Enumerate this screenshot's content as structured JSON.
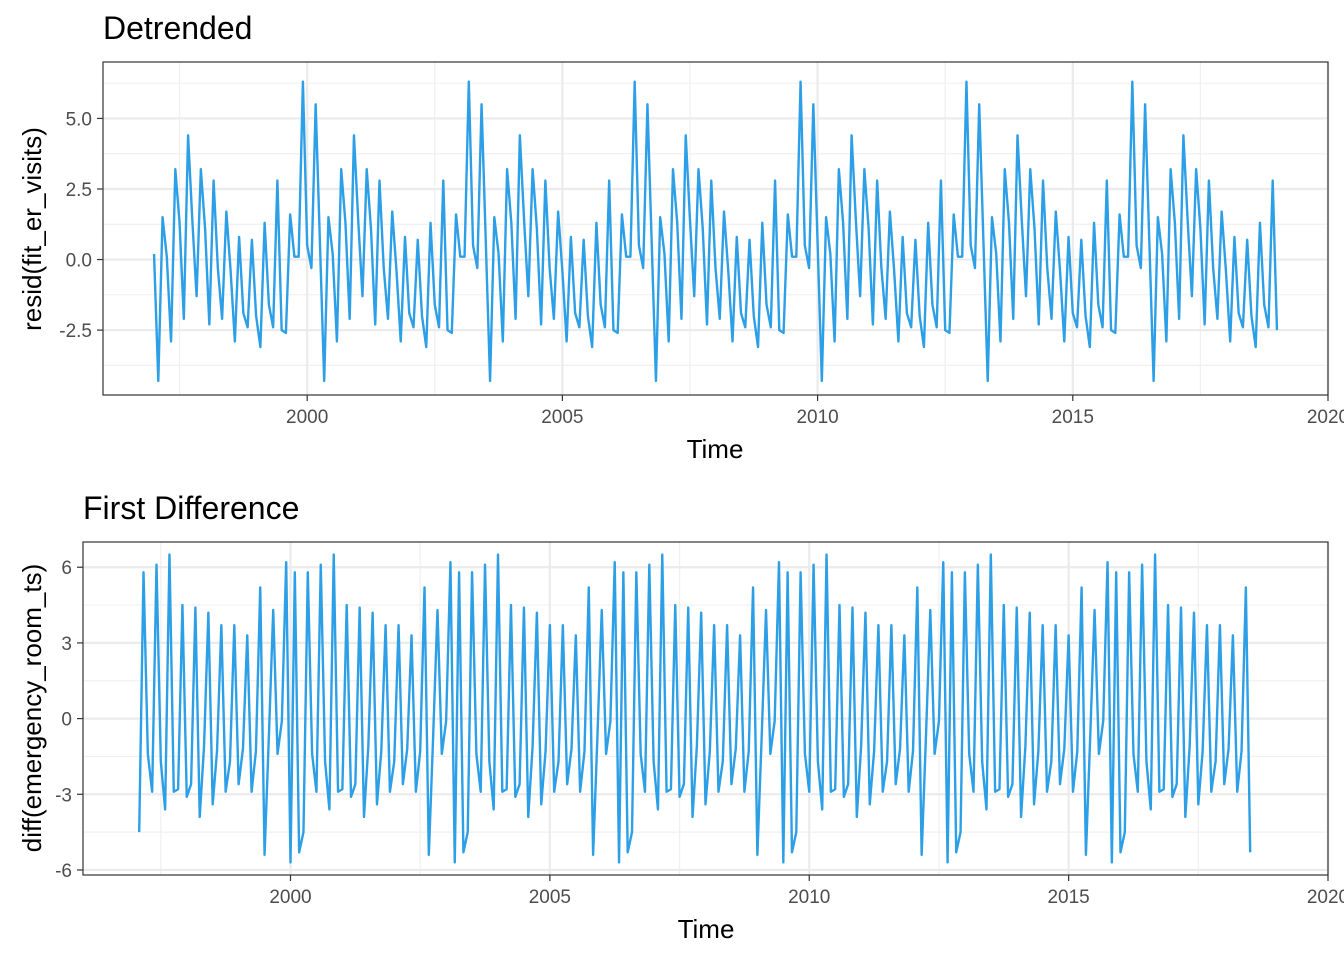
{
  "chart_data": [
    {
      "type": "line",
      "title": "Detrended",
      "xlabel": "Time",
      "ylabel": "resid(fit_er_visits)",
      "xlim": [
        1996.0,
        2020.0
      ],
      "ylim": [
        -4.8,
        7.0
      ],
      "x_ticks": [
        2000,
        2005,
        2010,
        2015,
        2020
      ],
      "x_tick_labels": [
        "2000",
        "2005",
        "2010",
        "2015",
        "2020"
      ],
      "y_ticks": [
        -2.5,
        0.0,
        2.5,
        5.0
      ],
      "y_tick_labels": [
        "-2.5",
        "0.0",
        "2.5",
        "5.0"
      ],
      "grid": true,
      "color": "#2c9fe6",
      "series": [
        {
          "x_start": 1997.0,
          "x_step": 0.0833333,
          "values": [
            0.2,
            -4.3,
            1.5,
            0.1,
            -2.9,
            3.2,
            1.3,
            -2.1,
            4.4,
            1.4,
            -1.3,
            3.2,
            1.1,
            -2.3,
            2.8,
            -0.3,
            -2.1,
            1.7,
            -0.4,
            -2.9,
            0.8,
            -1.9,
            -2.4,
            0.7,
            -2.0,
            -3.1,
            1.3,
            -1.6,
            -2.4,
            2.8,
            -2.5,
            -2.6,
            1.6,
            0.1,
            0.1,
            6.3,
            0.5,
            -0.3,
            5.5,
            0.6,
            -4.3,
            1.5,
            0.2,
            -2.9,
            3.2,
            1.3,
            -2.1,
            4.4,
            1.4,
            -1.3,
            3.2,
            1.1,
            -2.3,
            2.8,
            -0.3,
            -2.1,
            1.7,
            -0.4,
            -2.9,
            0.8,
            -1.9,
            -2.4,
            0.7,
            -2.0,
            -3.1,
            1.3,
            -1.6,
            -2.4,
            2.8,
            -2.5,
            -2.6,
            1.6,
            0.1,
            0.1,
            6.3,
            0.5,
            -0.3,
            5.5,
            0.6,
            -4.3,
            1.5,
            0.2,
            -2.9,
            3.2,
            1.3,
            -2.1,
            4.4,
            1.4,
            -1.3,
            3.2,
            1.1,
            -2.3,
            2.8,
            -0.3,
            -2.1,
            1.7,
            -0.4,
            -2.9,
            0.8,
            -1.9,
            -2.4,
            0.7,
            -2.0,
            -3.1,
            1.3,
            -1.6,
            -2.4,
            2.8,
            -2.5,
            -2.6,
            1.6,
            0.1,
            0.1,
            6.3,
            0.5,
            -0.3,
            5.5,
            0.6,
            -4.3,
            1.5,
            0.2,
            -2.9,
            3.2,
            1.3,
            -2.1,
            4.4,
            1.4,
            -1.3,
            3.2,
            1.1,
            -2.3,
            2.8,
            -0.3,
            -2.1,
            1.7,
            -0.4,
            -2.9,
            0.8,
            -1.9,
            -2.4,
            0.7,
            -2.0,
            -3.1,
            1.3,
            -1.6,
            -2.4,
            2.8,
            -2.5,
            -2.6,
            1.6,
            0.1,
            0.1,
            6.3,
            0.5,
            -0.3,
            5.5,
            0.6,
            -4.3,
            1.5,
            0.2,
            -2.9,
            3.2,
            1.3,
            -2.1,
            4.4,
            1.4,
            -1.3,
            3.2,
            1.1,
            -2.3,
            2.8,
            -0.3,
            -2.1,
            1.7,
            -0.4,
            -2.9,
            0.8,
            -1.9,
            -2.4,
            0.7,
            -2.0,
            -3.1,
            1.3,
            -1.6,
            -2.4,
            2.8,
            -2.5,
            -2.6,
            1.6,
            0.1,
            0.1,
            6.3,
            0.5,
            -0.3,
            5.5,
            0.6,
            -4.3,
            1.5,
            0.2,
            -2.9,
            3.2,
            1.3,
            -2.1,
            4.4,
            1.4,
            -1.3,
            3.2,
            1.1,
            -2.3,
            2.8,
            -0.3,
            -2.1,
            1.7,
            -0.4,
            -2.9,
            0.8,
            -1.9,
            -2.4,
            0.7,
            -2.0,
            -3.1,
            1.3,
            -1.6,
            -2.4,
            2.8,
            -2.5,
            -2.6,
            1.6,
            0.1,
            0.1,
            6.3,
            0.5,
            -0.3,
            5.5,
            0.6,
            -4.3,
            1.5,
            0.2,
            -2.9,
            3.2,
            1.3,
            -2.1,
            4.4,
            1.4,
            -1.3,
            3.2,
            1.1,
            -2.3,
            2.8,
            -0.3,
            -2.1,
            1.7,
            -0.4,
            -2.9,
            0.8,
            -1.9,
            -2.4,
            0.7,
            -2.0,
            -3.1,
            1.3,
            -1.6,
            -2.4,
            2.8,
            -2.5
          ]
        }
      ]
    },
    {
      "type": "line",
      "title": "First Difference",
      "xlabel": "Time",
      "ylabel": "diff(emergency_room_ts)",
      "xlim": [
        1996.0,
        2020.0
      ],
      "ylim": [
        -6.2,
        7.0
      ],
      "x_ticks": [
        2000,
        2005,
        2010,
        2015,
        2020
      ],
      "x_tick_labels": [
        "2000",
        "2005",
        "2010",
        "2015",
        "2020"
      ],
      "y_ticks": [
        -6,
        -3,
        0,
        3,
        6
      ],
      "y_tick_labels": [
        "-6",
        "-3",
        "0",
        "3",
        "6"
      ],
      "grid": true,
      "color": "#2c9fe6",
      "series": [
        {
          "x_start": 1997.0833,
          "x_step": 0.0833333,
          "values": [
            -4.5,
            5.8,
            -1.4,
            -2.9,
            6.1,
            -1.7,
            -3.6,
            6.5,
            -2.9,
            -2.8,
            4.5,
            -3.1,
            -2.6,
            4.4,
            -3.9,
            -1.1,
            4.2,
            -3.4,
            -1.3,
            3.7,
            -2.9,
            -1.7,
            3.7,
            -2.6,
            -1.2,
            3.3,
            -2.9,
            -1.3,
            5.2,
            -5.4,
            -0.7,
            4.3,
            -1.4,
            -0.1,
            6.2,
            -5.7,
            5.8,
            -5.3,
            -4.5,
            5.8,
            -1.4,
            -2.9,
            6.1,
            -1.7,
            -3.6,
            6.5,
            -2.9,
            -2.8,
            4.5,
            -3.1,
            -2.6,
            4.4,
            -3.9,
            -1.1,
            4.2,
            -3.4,
            -1.3,
            3.7,
            -2.9,
            -1.7,
            3.7,
            -2.6,
            -1.2,
            3.3,
            -2.9,
            -1.3,
            5.2,
            -5.4,
            -0.7,
            4.3,
            -1.4,
            -0.1,
            6.2,
            -5.7,
            5.8,
            -5.3,
            -4.5,
            5.8,
            -1.4,
            -2.9,
            6.1,
            -1.7,
            -3.6,
            6.5,
            -2.9,
            -2.8,
            4.5,
            -3.1,
            -2.6,
            4.4,
            -3.9,
            -1.1,
            4.2,
            -3.4,
            -1.3,
            3.7,
            -2.9,
            -1.7,
            3.7,
            -2.6,
            -1.2,
            3.3,
            -2.9,
            -1.3,
            5.2,
            -5.4,
            -0.7,
            4.3,
            -1.4,
            -0.1,
            6.2,
            -5.7,
            5.8,
            -5.3,
            -4.5,
            5.8,
            -1.4,
            -2.9,
            6.1,
            -1.7,
            -3.6,
            6.5,
            -2.9,
            -2.8,
            4.5,
            -3.1,
            -2.6,
            4.4,
            -3.9,
            -1.1,
            4.2,
            -3.4,
            -1.3,
            3.7,
            -2.9,
            -1.7,
            3.7,
            -2.6,
            -1.2,
            3.3,
            -2.9,
            -1.3,
            5.2,
            -5.4,
            -0.7,
            4.3,
            -1.4,
            -0.1,
            6.2,
            -5.7,
            5.8,
            -5.3,
            -4.5,
            5.8,
            -1.4,
            -2.9,
            6.1,
            -1.7,
            -3.6,
            6.5,
            -2.9,
            -2.8,
            4.5,
            -3.1,
            -2.6,
            4.4,
            -3.9,
            -1.1,
            4.2,
            -3.4,
            -1.3,
            3.7,
            -2.9,
            -1.7,
            3.7,
            -2.6,
            -1.2,
            3.3,
            -2.9,
            -1.3,
            5.2,
            -5.4,
            -0.7,
            4.3,
            -1.4,
            -0.1,
            6.2,
            -5.7,
            5.8,
            -5.3,
            -4.5,
            5.8,
            -1.4,
            -2.9,
            6.1,
            -1.7,
            -3.6,
            6.5,
            -2.9,
            -2.8,
            4.5,
            -3.1,
            -2.6,
            4.4,
            -3.9,
            -1.1,
            4.2,
            -3.4,
            -1.3,
            3.7,
            -2.9,
            -1.7,
            3.7,
            -2.6,
            -1.2,
            3.3,
            -2.9,
            -1.3,
            5.2,
            -5.4,
            -0.7,
            4.3,
            -1.4,
            -0.1,
            6.2,
            -5.7,
            5.8,
            -5.3,
            -4.5,
            5.8,
            -1.4,
            -2.9,
            6.1,
            -1.7,
            -3.6,
            6.5,
            -2.9,
            -2.8,
            4.5,
            -3.1,
            -2.6,
            4.4,
            -3.9,
            -1.1,
            4.2,
            -3.4,
            -1.3,
            3.7,
            -2.9,
            -1.7,
            3.7,
            -2.6,
            -1.2,
            3.3,
            -2.9,
            -1.3,
            5.2,
            -5.3
          ]
        }
      ]
    }
  ]
}
